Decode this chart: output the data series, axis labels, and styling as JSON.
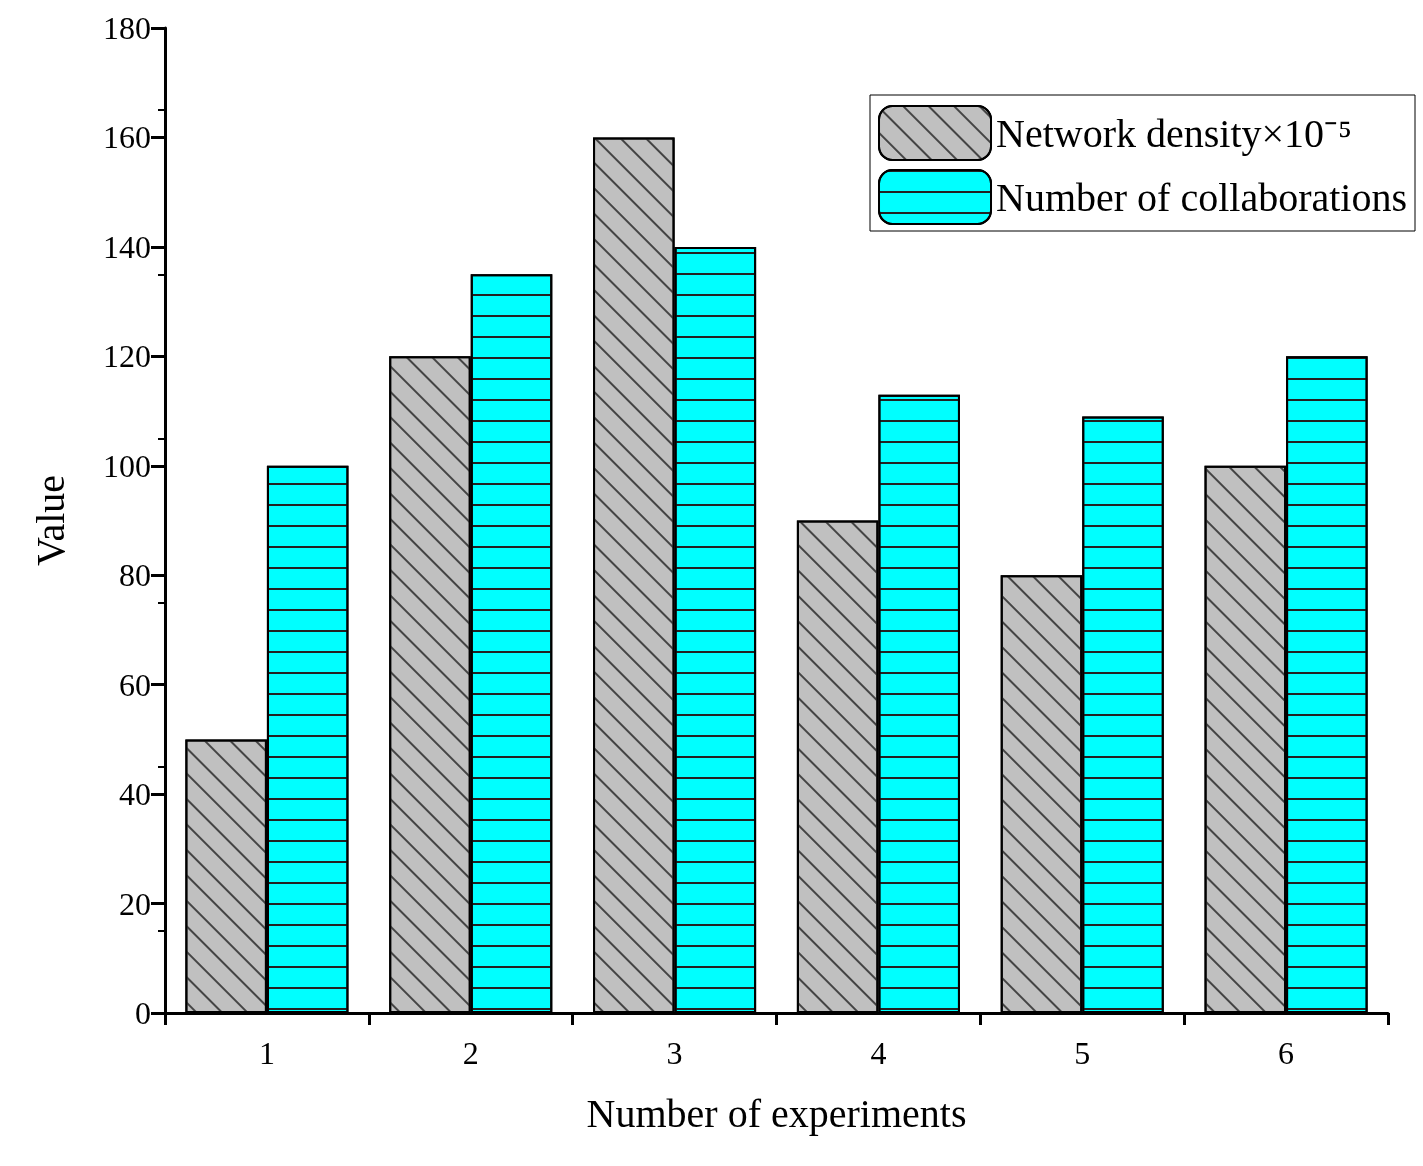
{
  "chart_data": {
    "type": "bar",
    "xlabel": "Number of experiments",
    "ylabel": "Value",
    "categories": [
      "1",
      "2",
      "3",
      "4",
      "5",
      "6"
    ],
    "series": [
      {
        "name": "Network density×10⁻⁵",
        "color": "#c0c0c0",
        "values": [
          50,
          120,
          160,
          90,
          80,
          100
        ]
      },
      {
        "name": "Number of collaborations",
        "color": "#00ffff",
        "values": [
          100,
          135,
          140,
          113,
          109,
          120
        ]
      }
    ],
    "ylim": [
      0,
      180
    ],
    "yticks": [
      0,
      20,
      40,
      60,
      80,
      100,
      120,
      140,
      160,
      180
    ],
    "grid": false,
    "legend": "top right"
  }
}
